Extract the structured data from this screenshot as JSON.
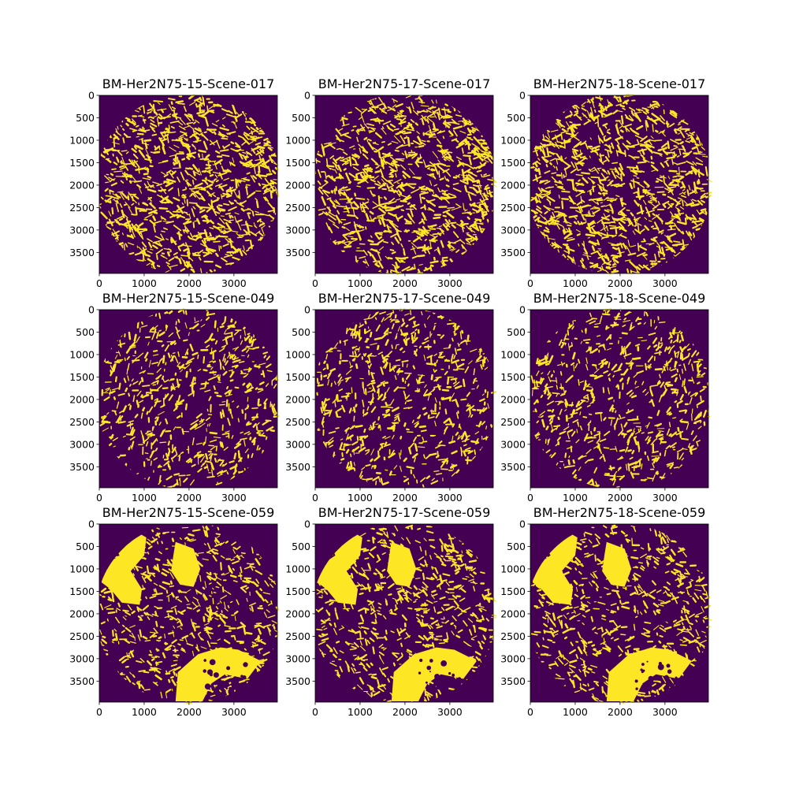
{
  "colors": {
    "background": "#440154",
    "foreground": "#fde725",
    "spine": "#000000"
  },
  "chart_data": [
    {
      "type": "heatmap",
      "title": "BM-Her2N75-15-Scene-017",
      "xlim": [
        0,
        3968
      ],
      "ylim": [
        3968,
        0
      ],
      "xticks": [
        0,
        1000,
        2000,
        3000
      ],
      "yticks": [
        0,
        500,
        1000,
        1500,
        2000,
        2500,
        3000,
        3500
      ],
      "colormap": "viridis",
      "values": "binary mask",
      "foreground_fraction": 0.45,
      "pattern": "dense fibrous speckle filling circular tissue region"
    },
    {
      "type": "heatmap",
      "title": "BM-Her2N75-17-Scene-017",
      "xlim": [
        0,
        3968
      ],
      "ylim": [
        3968,
        0
      ],
      "xticks": [
        0,
        1000,
        2000,
        3000
      ],
      "yticks": [
        0,
        500,
        1000,
        1500,
        2000,
        2500,
        3000,
        3500
      ],
      "colormap": "viridis",
      "values": "binary mask",
      "foreground_fraction": 0.45,
      "pattern": "dense fibrous speckle filling circular tissue region"
    },
    {
      "type": "heatmap",
      "title": "BM-Her2N75-18-Scene-017",
      "xlim": [
        0,
        3968
      ],
      "ylim": [
        3968,
        0
      ],
      "xticks": [
        0,
        1000,
        2000,
        3000
      ],
      "yticks": [
        0,
        500,
        1000,
        1500,
        2000,
        2500,
        3000,
        3500
      ],
      "colormap": "viridis",
      "values": "binary mask",
      "foreground_fraction": 0.45,
      "pattern": "dense fibrous speckle filling circular tissue region"
    },
    {
      "type": "heatmap",
      "title": "BM-Her2N75-15-Scene-049",
      "xlim": [
        0,
        3968
      ],
      "ylim": [
        3968,
        0
      ],
      "xticks": [
        0,
        1000,
        2000,
        3000
      ],
      "yticks": [
        0,
        500,
        1000,
        1500,
        2000,
        2500,
        3000,
        3500
      ],
      "colormap": "viridis",
      "values": "binary mask",
      "foreground_fraction": 0.3,
      "pattern": "sparser streaked speckle, denser toward center"
    },
    {
      "type": "heatmap",
      "title": "BM-Her2N75-17-Scene-049",
      "xlim": [
        0,
        3968
      ],
      "ylim": [
        3968,
        0
      ],
      "xticks": [
        0,
        1000,
        2000,
        3000
      ],
      "yticks": [
        0,
        500,
        1000,
        1500,
        2000,
        2500,
        3000,
        3500
      ],
      "colormap": "viridis",
      "values": "binary mask",
      "foreground_fraction": 0.3,
      "pattern": "sparser streaked speckle, denser toward center"
    },
    {
      "type": "heatmap",
      "title": "BM-Her2N75-18-Scene-049",
      "xlim": [
        0,
        3968
      ],
      "ylim": [
        3968,
        0
      ],
      "xticks": [
        0,
        1000,
        2000,
        3000
      ],
      "yticks": [
        0,
        500,
        1000,
        1500,
        2000,
        2500,
        3000,
        3500
      ],
      "colormap": "viridis",
      "values": "binary mask",
      "foreground_fraction": 0.3,
      "pattern": "sparser streaked speckle, denser toward center"
    },
    {
      "type": "heatmap",
      "title": "BM-Her2N75-15-Scene-059",
      "xlim": [
        0,
        3968
      ],
      "ylim": [
        3968,
        0
      ],
      "xticks": [
        0,
        1000,
        2000,
        3000
      ],
      "yticks": [
        0,
        500,
        1000,
        1500,
        2000,
        2500,
        3000,
        3500
      ],
      "colormap": "viridis",
      "values": "binary mask",
      "foreground_fraction": 0.3,
      "pattern": "large solid blobs at upper-left, upper-center and lower-center with fine speckle elsewhere"
    },
    {
      "type": "heatmap",
      "title": "BM-Her2N75-17-Scene-059",
      "xlim": [
        0,
        3968
      ],
      "ylim": [
        3968,
        0
      ],
      "xticks": [
        0,
        1000,
        2000,
        3000
      ],
      "yticks": [
        0,
        500,
        1000,
        1500,
        2000,
        2500,
        3000,
        3500
      ],
      "colormap": "viridis",
      "values": "binary mask",
      "foreground_fraction": 0.3,
      "pattern": "large solid blobs at upper-left, upper-center and lower-center with fine speckle elsewhere"
    },
    {
      "type": "heatmap",
      "title": "BM-Her2N75-18-Scene-059",
      "xlim": [
        0,
        3968
      ],
      "ylim": [
        3968,
        0
      ],
      "xticks": [
        0,
        1000,
        2000,
        3000
      ],
      "yticks": [
        0,
        500,
        1000,
        1500,
        2000,
        2500,
        3000,
        3500
      ],
      "colormap": "viridis",
      "values": "binary mask",
      "foreground_fraction": 0.3,
      "pattern": "large solid blobs at upper-left, upper-center and lower-center with fine speckle elsewhere"
    }
  ]
}
